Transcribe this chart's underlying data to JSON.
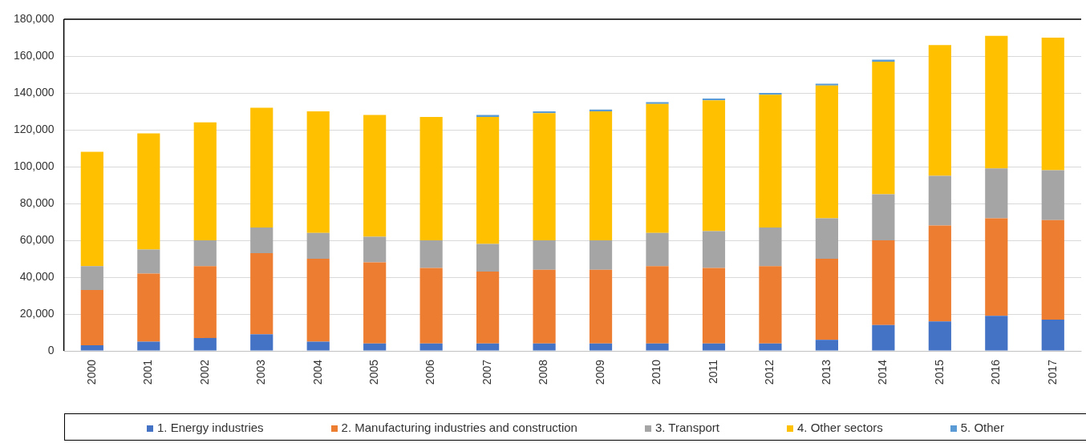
{
  "chart_data": {
    "type": "bar",
    "stacked": true,
    "categories": [
      "2000",
      "2001",
      "2002",
      "2003",
      "2004",
      "2005",
      "2006",
      "2007",
      "2008",
      "2009",
      "2010",
      "2011",
      "2012",
      "2013",
      "2014",
      "2015",
      "2016",
      "2017"
    ],
    "series": [
      {
        "name": "1. Energy industries",
        "color": "#4472c4",
        "values": [
          3000,
          5000,
          7000,
          9000,
          5000,
          4000,
          4000,
          4000,
          4000,
          4000,
          4000,
          4000,
          4000,
          6000,
          14000,
          16000,
          19000,
          17000
        ]
      },
      {
        "name": "2. Manufacturing industries and construction",
        "color": "#ed7d31",
        "values": [
          30000,
          37000,
          39000,
          44000,
          45000,
          44000,
          41000,
          39000,
          40000,
          40000,
          42000,
          41000,
          42000,
          44000,
          46000,
          52000,
          53000,
          54000
        ]
      },
      {
        "name": "3. Transport",
        "color": "#a5a5a5",
        "values": [
          13000,
          13000,
          14000,
          14000,
          14000,
          14000,
          15000,
          15000,
          16000,
          16000,
          18000,
          20000,
          21000,
          22000,
          25000,
          27000,
          27000,
          27000
        ]
      },
      {
        "name": "4. Other sectors",
        "color": "#ffc000",
        "values": [
          62000,
          63000,
          64000,
          65000,
          66000,
          66000,
          67000,
          69000,
          69000,
          70000,
          70000,
          71000,
          72000,
          72000,
          72000,
          71000,
          72000,
          72000
        ]
      },
      {
        "name": "5. Other",
        "color": "#5b9bd5",
        "values": [
          0,
          0,
          0,
          0,
          0,
          0,
          0,
          1000,
          1000,
          1000,
          1000,
          1000,
          1000,
          1000,
          1000,
          0,
          0,
          0
        ]
      }
    ],
    "ylim": [
      0,
      180000
    ],
    "yticks": [
      0,
      {
        "value": 20000,
        "label": "20,000"
      },
      {
        "value": 40000,
        "label": "40,000"
      },
      {
        "value": 60000,
        "label": "60,000"
      },
      {
        "value": 80000,
        "label": "80,000"
      },
      {
        "value": 100000,
        "label": "100,000"
      },
      {
        "value": 120000,
        "label": "120,000"
      },
      {
        "value": 140000,
        "label": "140,000"
      },
      {
        "value": 160000,
        "label": "160,000"
      },
      {
        "value": 180000,
        "label": "180,000"
      }
    ],
    "grid": "y",
    "legend": "bottom"
  }
}
